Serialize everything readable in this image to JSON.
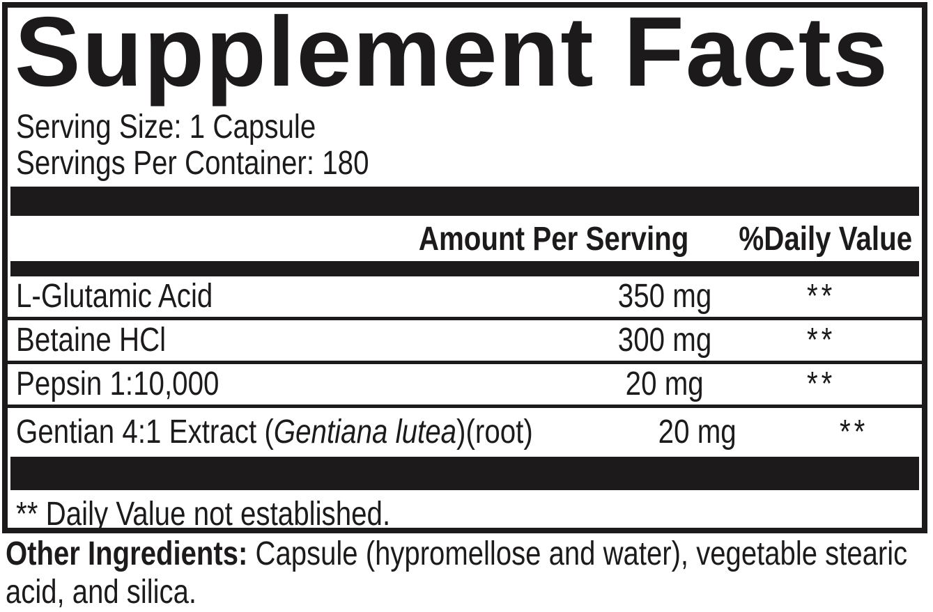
{
  "colors": {
    "ink": "#1d1a1b",
    "paper": "#ffffff"
  },
  "panel": {
    "title": "Supplement Facts",
    "serving": {
      "size": "Serving Size: 1 Capsule",
      "per_container": "Servings Per Container: 180"
    },
    "header": {
      "amount": "Amount Per Serving",
      "daily_value": "%Daily Value"
    },
    "rows": [
      {
        "prefix": "L-Glutamic Acid",
        "italic": "",
        "suffix": "",
        "amount": "350 mg",
        "dv": "**"
      },
      {
        "prefix": "Betaine HCl",
        "italic": "",
        "suffix": "",
        "amount": "300 mg",
        "dv": "**"
      },
      {
        "prefix": "Pepsin 1:10,000",
        "italic": "",
        "suffix": "",
        "amount": "20 mg",
        "dv": "**"
      },
      {
        "prefix": "Gentian 4:1 Extract (",
        "italic": "Gentiana lutea",
        "suffix": ")(root)",
        "amount": "20 mg",
        "dv": "**"
      }
    ],
    "footnote": "** Daily Value not established."
  },
  "other_ingredients": {
    "label": "Other Ingredients:",
    "text": " Capsule (hypromellose and water), vegetable stearic acid, and silica."
  }
}
